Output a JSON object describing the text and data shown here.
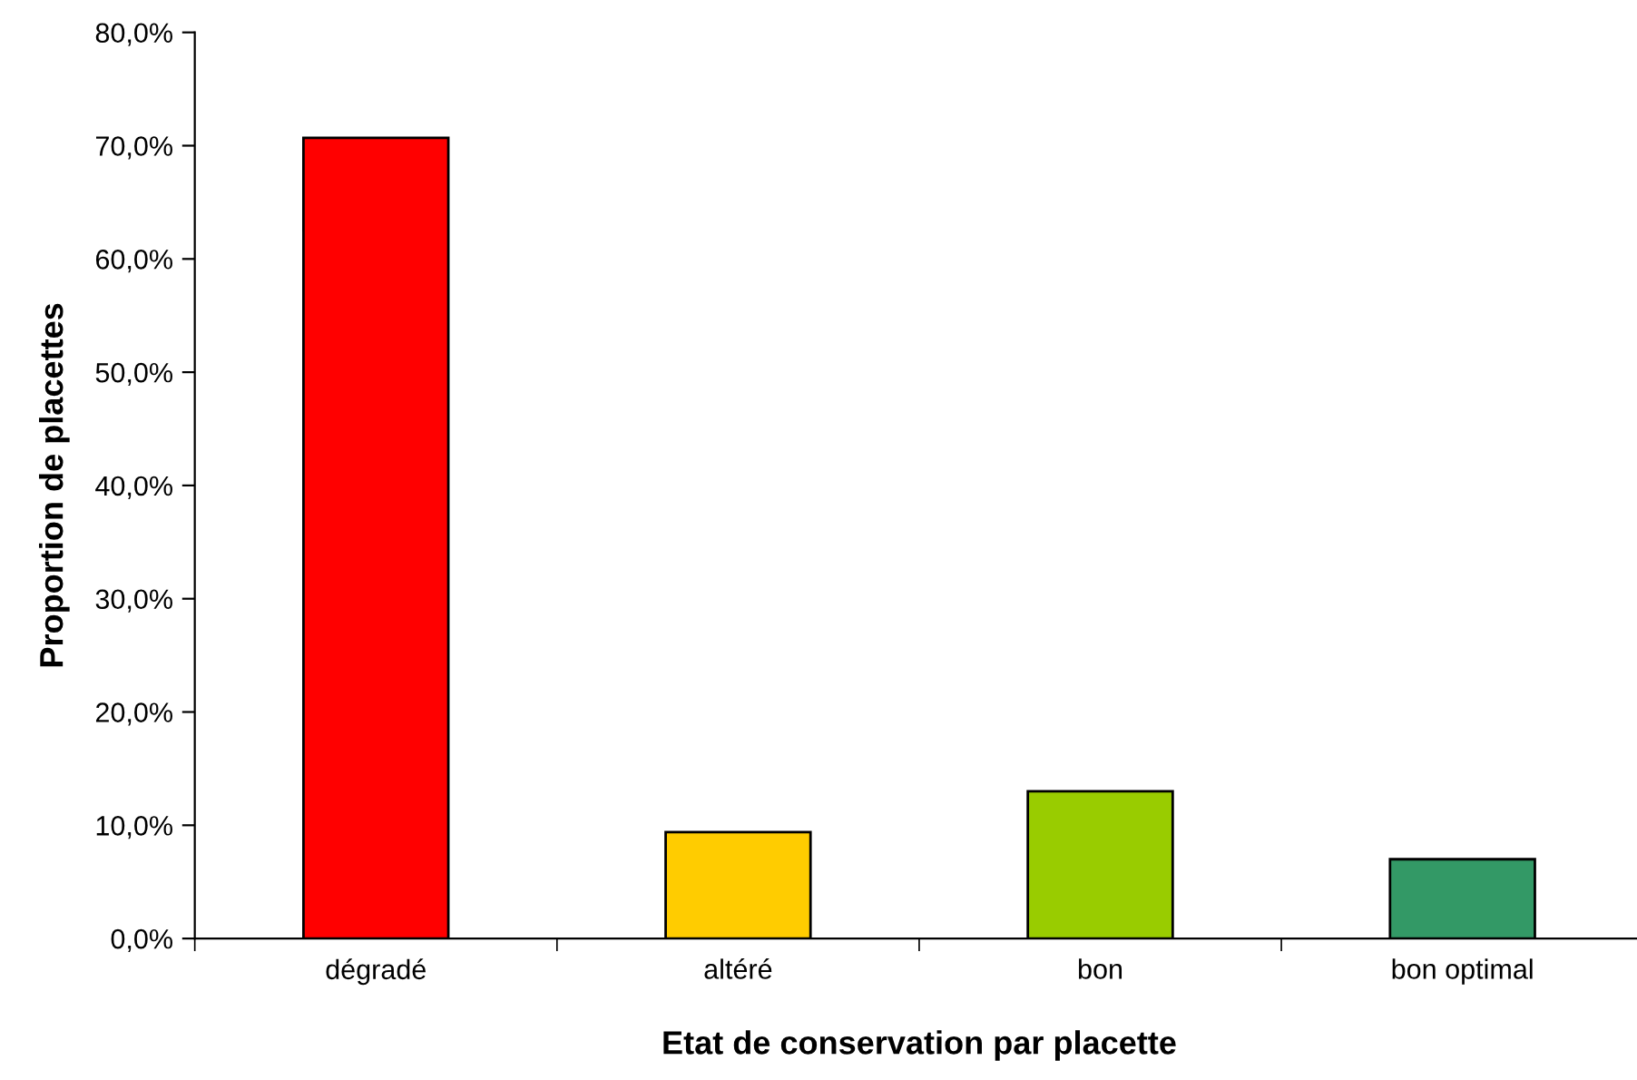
{
  "chart_data": {
    "type": "bar",
    "xlabel": "Etat de conservation par placette",
    "ylabel": "Proportion de placettes",
    "categories": [
      "dégradé",
      "altéré",
      "bon",
      "bon optimal"
    ],
    "values": [
      70.7,
      9.4,
      13.0,
      7.0
    ],
    "colors": [
      "#ff0000",
      "#ffcc00",
      "#99cc00",
      "#339966"
    ],
    "ylim": [
      0,
      80
    ],
    "yticks": [
      {
        "value": 0,
        "label": "0,0%"
      },
      {
        "value": 10,
        "label": "10,0%"
      },
      {
        "value": 20,
        "label": "20,0%"
      },
      {
        "value": 30,
        "label": "30,0%"
      },
      {
        "value": 40,
        "label": "40,0%"
      },
      {
        "value": 50,
        "label": "50,0%"
      },
      {
        "value": 60,
        "label": "60,0%"
      },
      {
        "value": 70,
        "label": "70,0%"
      },
      {
        "value": 80,
        "label": "80,0%"
      }
    ],
    "grid": false,
    "legend": false
  }
}
